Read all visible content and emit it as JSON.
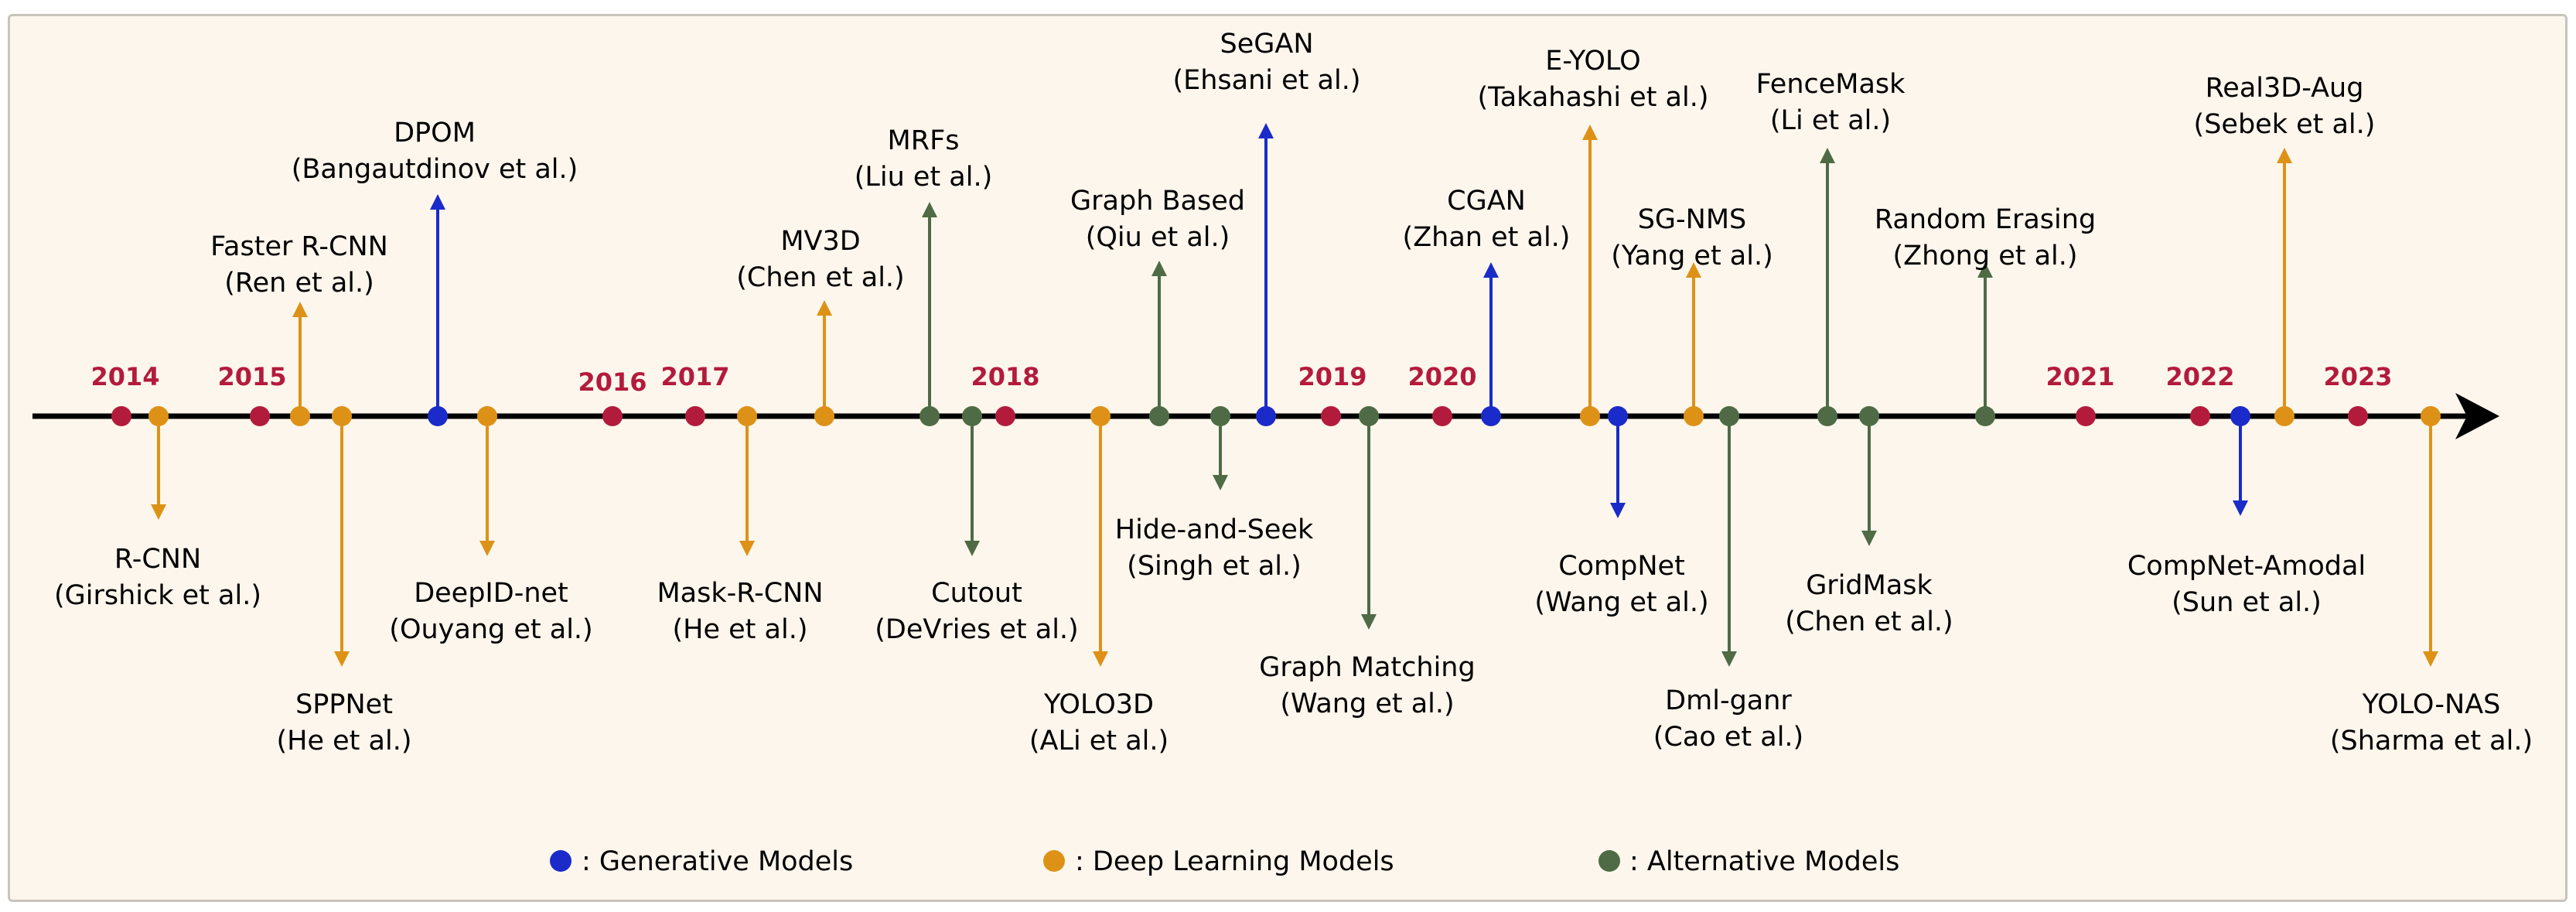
{
  "colors": {
    "generative": "#1a2bc9",
    "deep": "#dd9217",
    "alternative": "#4e6b46",
    "year": "#b31b3c",
    "axis": "#000000"
  },
  "years": [
    {
      "label": "2014",
      "id": "2014"
    },
    {
      "label": "2015",
      "id": "2015"
    },
    {
      "label": "2016",
      "id": "2016"
    },
    {
      "label": "2017",
      "id": "2017"
    },
    {
      "label": "2018",
      "id": "2018"
    },
    {
      "label": "2019",
      "id": "2019"
    },
    {
      "label": "2020",
      "id": "2020"
    },
    {
      "label": "2021",
      "id": "2021"
    },
    {
      "label": "2022",
      "id": "2022"
    },
    {
      "label": "2023",
      "id": "2023"
    }
  ],
  "methods": [
    {
      "id": "r-cnn",
      "name": "R-CNN",
      "authors": "(Girshick et al.)",
      "category": "deep"
    },
    {
      "id": "faster-r-cnn",
      "name": "Faster R-CNN",
      "authors": "(Ren et al.)",
      "category": "deep"
    },
    {
      "id": "sppnet",
      "name": "SPPNet",
      "authors": "(He et al.)",
      "category": "deep"
    },
    {
      "id": "dpom",
      "name": "DPOM",
      "authors": "(Bangautdinov et al.)",
      "category": "generative"
    },
    {
      "id": "deepid-net",
      "name": "DeepID-net",
      "authors": "(Ouyang et al.)",
      "category": "deep"
    },
    {
      "id": "mask-r-cnn",
      "name": "Mask-R-CNN",
      "authors": "(He et al.)",
      "category": "deep"
    },
    {
      "id": "mv3d",
      "name": "MV3D",
      "authors": "(Chen et al.)",
      "category": "deep"
    },
    {
      "id": "mrfs",
      "name": "MRFs",
      "authors": "(Liu et al.)",
      "category": "alternative"
    },
    {
      "id": "cutout",
      "name": "Cutout",
      "authors": "(DeVries et al.)",
      "category": "alternative"
    },
    {
      "id": "yolo3d",
      "name": "YOLO3D",
      "authors": "(ALi et al.)",
      "category": "deep"
    },
    {
      "id": "graph-based",
      "name": "Graph Based",
      "authors": "(Qiu et al.)",
      "category": "alternative"
    },
    {
      "id": "hide-and-seek",
      "name": "Hide-and-Seek",
      "authors": "(Singh et al.)",
      "category": "alternative"
    },
    {
      "id": "segan",
      "name": "SeGAN",
      "authors": "(Ehsani et al.)",
      "category": "generative"
    },
    {
      "id": "graph-matching",
      "name": "Graph Matching",
      "authors": "(Wang et al.)",
      "category": "alternative"
    },
    {
      "id": "cgan",
      "name": "CGAN",
      "authors": "(Zhan et al.)",
      "category": "generative"
    },
    {
      "id": "e-yolo",
      "name": "E-YOLO",
      "authors": "(Takahashi et al.)",
      "category": "deep"
    },
    {
      "id": "compnet",
      "name": "CompNet",
      "authors": "(Wang et al.)",
      "category": "generative"
    },
    {
      "id": "sg-nms",
      "name": "SG-NMS",
      "authors": "(Yang et al.)",
      "category": "deep"
    },
    {
      "id": "dml-ganr",
      "name": "Dml-ganr",
      "authors": "(Cao et al.)",
      "category": "alternative"
    },
    {
      "id": "fencemask",
      "name": "FenceMask",
      "authors": "(Li et al.)",
      "category": "alternative"
    },
    {
      "id": "gridmask",
      "name": "GridMask",
      "authors": "(Chen et al.)",
      "category": "alternative"
    },
    {
      "id": "random-erasing",
      "name": "Random Erasing",
      "authors": "(Zhong et al.)",
      "category": "alternative"
    },
    {
      "id": "compnet-amodal",
      "name": "CompNet-Amodal",
      "authors": "(Sun et al.)",
      "category": "generative"
    },
    {
      "id": "real3d-aug",
      "name": "Real3D-Aug",
      "authors": "(Sebek et al.)",
      "category": "deep"
    },
    {
      "id": "yolo-nas",
      "name": "YOLO-NAS",
      "authors": "(Sharma et al.)",
      "category": "deep"
    }
  ],
  "legend": [
    {
      "category": "generative",
      "label": ": Generative Models"
    },
    {
      "category": "deep",
      "label": ": Deep Learning Models"
    },
    {
      "category": "alternative",
      "label": ": Alternative Models"
    }
  ]
}
